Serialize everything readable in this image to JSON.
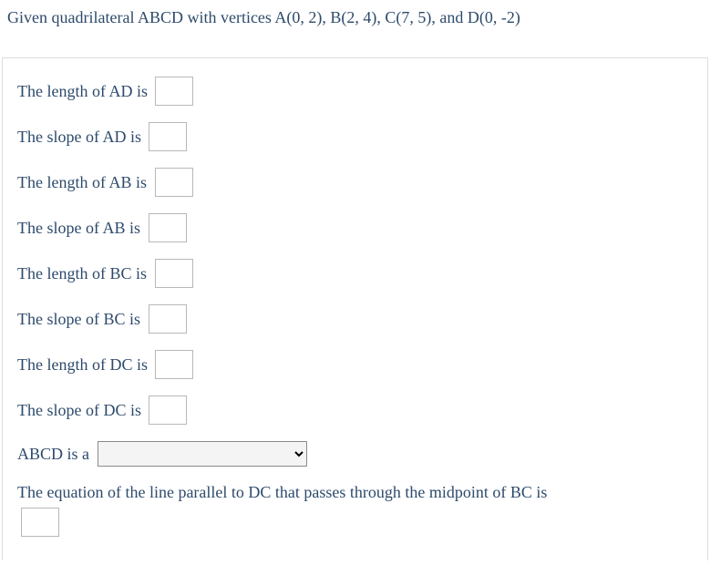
{
  "prompt": "Given quadrilateral ABCD with vertices A(0, 2), B(2, 4), C(7, 5), and D(0, -2)",
  "rows": {
    "r1": "The length of AD is ",
    "r2": "The slope of AD is ",
    "r3": "The length of AB is ",
    "r4": "The slope of AB is ",
    "r5": "The length of BC is ",
    "r6": "The slope of BC is ",
    "r7": "The length of DC is ",
    "r8": "The slope of DC is ",
    "r9": "ABCD is a ",
    "r10": "The equation of the line parallel to DC that passes through the midpoint of BC is"
  },
  "inputs": {
    "ad_length": "",
    "ad_slope": "",
    "ab_length": "",
    "ab_slope": "",
    "bc_length": "",
    "bc_slope": "",
    "dc_length": "",
    "dc_slope": "",
    "shape_selected": "",
    "parallel_eq": ""
  }
}
